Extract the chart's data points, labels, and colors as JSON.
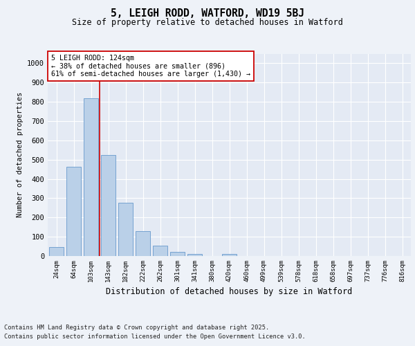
{
  "title1": "5, LEIGH RODD, WATFORD, WD19 5BJ",
  "title2": "Size of property relative to detached houses in Watford",
  "xlabel": "Distribution of detached houses by size in Watford",
  "ylabel": "Number of detached properties",
  "categories": [
    "24sqm",
    "64sqm",
    "103sqm",
    "143sqm",
    "182sqm",
    "222sqm",
    "262sqm",
    "301sqm",
    "341sqm",
    "380sqm",
    "420sqm",
    "460sqm",
    "499sqm",
    "539sqm",
    "578sqm",
    "618sqm",
    "658sqm",
    "697sqm",
    "737sqm",
    "776sqm",
    "816sqm"
  ],
  "values": [
    45,
    463,
    820,
    525,
    275,
    128,
    53,
    22,
    10,
    0,
    11,
    0,
    0,
    0,
    0,
    0,
    0,
    0,
    0,
    0,
    0
  ],
  "bar_color": "#bad0e8",
  "bar_edge_color": "#6699cc",
  "vline_x": 2.5,
  "vline_color": "#cc0000",
  "annotation_text": "5 LEIGH RODD: 124sqm\n← 38% of detached houses are smaller (896)\n61% of semi-detached houses are larger (1,430) →",
  "annotation_box_color": "#ffffff",
  "annotation_box_edge": "#cc0000",
  "ylim": [
    0,
    1050
  ],
  "yticks": [
    0,
    100,
    200,
    300,
    400,
    500,
    600,
    700,
    800,
    900,
    1000
  ],
  "footer_line1": "Contains HM Land Registry data © Crown copyright and database right 2025.",
  "footer_line2": "Contains public sector information licensed under the Open Government Licence v3.0.",
  "bg_color": "#eef2f8",
  "plot_bg_color": "#e4eaf4"
}
